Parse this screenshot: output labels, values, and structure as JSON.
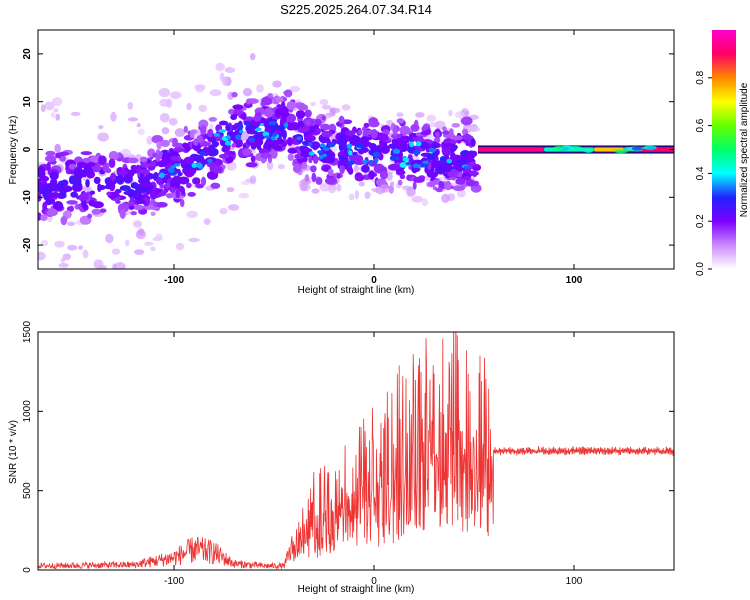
{
  "title": "S225.2025.264.07.34.R14",
  "chart_data": [
    {
      "type": "heatmap",
      "xlabel": "Height of straight line (km)",
      "ylabel": "Frequency (Hz)",
      "xlim": [
        -168,
        150
      ],
      "ylim": [
        -25,
        25
      ],
      "xticks": [
        -100,
        0,
        100
      ],
      "yticks": [
        -20,
        -10,
        0,
        10,
        20
      ],
      "colorbar": {
        "label": "Normalized spectral amplitude",
        "range": [
          0,
          1
        ],
        "ticks": [
          0.0,
          0.2,
          0.4,
          0.6,
          0.8
        ],
        "colors": [
          "#ffffff",
          "#cc88ff",
          "#7a00ff",
          "#2222ff",
          "#00ffff",
          "#00ff66",
          "#66ff00",
          "#ffff00",
          "#ff8800",
          "#ff0066",
          "#ff00cc"
        ]
      },
      "ridge": {
        "x": [
          -168,
          -140,
          -120,
          -105,
          -90,
          -80,
          -70,
          -60,
          -50,
          -45,
          -35,
          -20,
          0,
          20,
          40,
          52
        ],
        "y": [
          -8,
          -7,
          -8,
          -5,
          -3,
          0,
          4,
          3,
          4,
          5,
          2,
          0,
          -1,
          -1,
          -2,
          -1
        ]
      },
      "band": {
        "x": [
          52,
          150
        ],
        "y": [
          0,
          0
        ],
        "amplitude": [
          0.85,
          0.9
        ]
      }
    },
    {
      "type": "line",
      "xlabel": "Height of straight line (km)",
      "ylabel": "SNR (10 * v/v)",
      "xlim": [
        -168,
        150
      ],
      "ylim": [
        0,
        1500
      ],
      "xticks": [
        -100,
        0,
        100
      ],
      "yticks": [
        0,
        500,
        1000,
        1500
      ],
      "color": "#ee3333",
      "envelope": {
        "x": [
          -168,
          -120,
          -100,
          -90,
          -80,
          -70,
          -55,
          -45,
          -40,
          -30,
          -20,
          -10,
          0,
          10,
          20,
          30,
          40,
          50,
          58,
          60,
          150
        ],
        "y": [
          40,
          50,
          120,
          200,
          170,
          60,
          40,
          40,
          250,
          450,
          500,
          650,
          800,
          900,
          1000,
          1100,
          1200,
          1050,
          950,
          750,
          750
        ]
      }
    }
  ]
}
